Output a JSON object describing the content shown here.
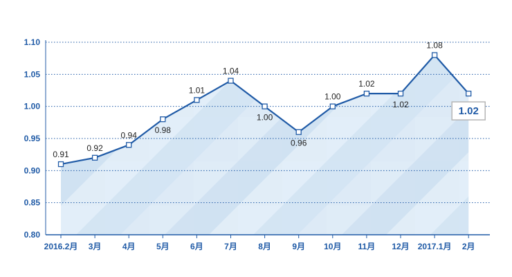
{
  "chart_data": {
    "type": "line",
    "categories": [
      "2016.2月",
      "3月",
      "4月",
      "5月",
      "6月",
      "7月",
      "8月",
      "9月",
      "10月",
      "11月",
      "12月",
      "2017.1月",
      "2月"
    ],
    "values": [
      0.91,
      0.92,
      0.94,
      0.98,
      1.01,
      1.04,
      1.0,
      0.96,
      1.0,
      1.02,
      1.02,
      1.08,
      1.02
    ],
    "data_labels": [
      "0.91",
      "0.92",
      "0.94",
      "0.98",
      "1.01",
      "1.04",
      "1.00",
      "0.96",
      "1.00",
      "1.02",
      "1.02",
      "1.08",
      ""
    ],
    "highlight_label": "1.02",
    "y_ticks": [
      "0.80",
      "0.85",
      "0.90",
      "0.95",
      "1.00",
      "1.05",
      "1.10"
    ],
    "ylim": [
      0.8,
      1.1
    ],
    "title": "",
    "xlabel": "",
    "ylabel": "",
    "grid": "horizontal dotted",
    "colors": {
      "line": "#1f5aa6",
      "axis_text": "#1f5aa6",
      "grid": "#1f5aa6",
      "area": "#d9e8f5"
    }
  }
}
